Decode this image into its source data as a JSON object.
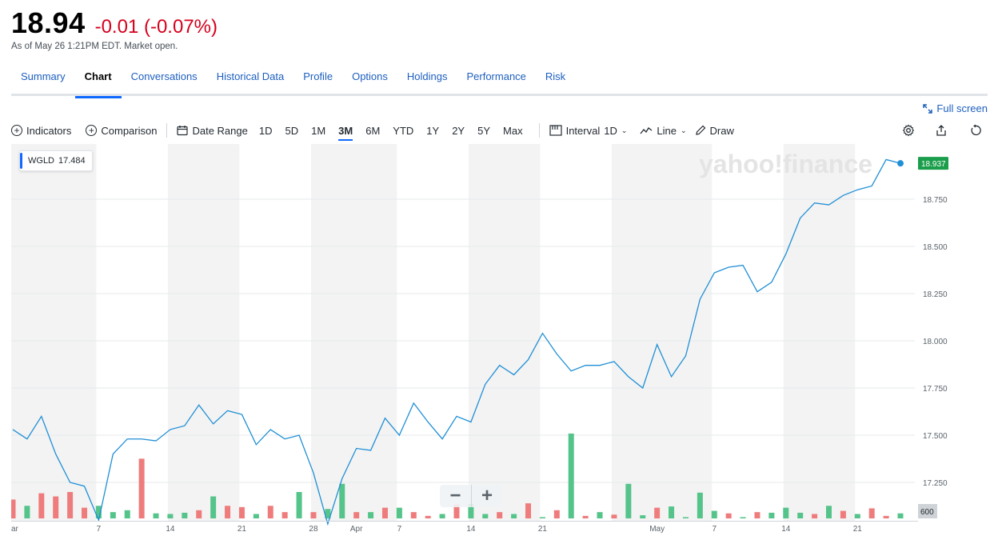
{
  "quote": {
    "price": "18.94",
    "change": "-0.01 (-0.07%)",
    "as_of": "As of May 26 1:21PM EDT. Market open."
  },
  "nav": {
    "tabs": [
      "Summary",
      "Chart",
      "Conversations",
      "Historical Data",
      "Profile",
      "Options",
      "Holdings",
      "Performance",
      "Risk"
    ],
    "active": "Chart"
  },
  "fullscreen_label": "Full screen",
  "toolbar": {
    "indicators": "Indicators",
    "comparison": "Comparison",
    "date_range": "Date Range",
    "ranges": [
      "1D",
      "5D",
      "1M",
      "3M",
      "6M",
      "YTD",
      "1Y",
      "2Y",
      "5Y",
      "Max"
    ],
    "active_range": "3M",
    "interval_label": "Interval",
    "interval_value": "1D",
    "chart_type": "Line",
    "draw": "Draw"
  },
  "legend": {
    "symbol": "WGLD",
    "value": "17.484"
  },
  "watermark": "yahoo!finance",
  "zoom": {
    "minus": "−",
    "plus": "+"
  },
  "colors": {
    "line": "#1f8fd6",
    "up_volume": "#55c48a",
    "down_volume": "#ef7c7c",
    "current_badge": "#1a9e4b",
    "change_red": "#d6001c",
    "accent": "#0f69ff"
  },
  "chart_data": {
    "type": "line",
    "series": [
      {
        "name": "WGLD",
        "y": [
          17.53,
          17.48,
          17.6,
          17.4,
          17.25,
          17.23,
          17.05,
          17.4,
          17.48,
          17.48,
          17.47,
          17.53,
          17.55,
          17.66,
          17.56,
          17.63,
          17.61,
          17.45,
          17.53,
          17.48,
          17.5,
          17.3,
          17.03,
          17.27,
          17.43,
          17.42,
          17.59,
          17.5,
          17.67,
          17.57,
          17.48,
          17.6,
          17.57,
          17.77,
          17.87,
          17.82,
          17.9,
          18.04,
          17.93,
          17.84,
          17.87,
          17.87,
          17.89,
          17.81,
          17.75,
          17.98,
          17.81,
          17.92,
          18.22,
          18.36,
          18.39,
          18.4,
          18.26,
          18.31,
          18.46,
          18.65,
          18.73,
          18.72,
          18.77,
          18.8,
          18.82,
          18.96,
          18.94
        ]
      }
    ],
    "volume": {
      "values": [
        3,
        2,
        4,
        3.5,
        4.2,
        1.7,
        2,
        1,
        1.3,
        9.5,
        0.8,
        0.7,
        0.9,
        1.3,
        3.5,
        2,
        1.8,
        0.7,
        2,
        1,
        4.2,
        1,
        1.5,
        5.5,
        1,
        1,
        1.7,
        1.7,
        1,
        0.4,
        0.7,
        2.2,
        2.3,
        0.7,
        1,
        0.7,
        2.4,
        0.2,
        1.3,
        13.5,
        0.4,
        1,
        0.6,
        5.5,
        0.5,
        1.7,
        1.9,
        0.2,
        4.1,
        1.2,
        0.8,
        0.2,
        1,
        0.9,
        1.7,
        0.9,
        0.7,
        2,
        1.2,
        0.7,
        1.6,
        0.4,
        0.8
      ],
      "direction": [
        "d",
        "u",
        "d",
        "d",
        "d",
        "d",
        "u",
        "u",
        "u",
        "d",
        "u",
        "u",
        "u",
        "d",
        "u",
        "d",
        "d",
        "u",
        "d",
        "d",
        "u",
        "d",
        "u",
        "u",
        "d",
        "u",
        "d",
        "u",
        "d",
        "d",
        "u",
        "d",
        "u",
        "u",
        "d",
        "u",
        "d",
        "u",
        "d",
        "u",
        "d",
        "u",
        "d",
        "u",
        "u",
        "d",
        "u",
        "u",
        "u",
        "u",
        "d",
        "u",
        "d",
        "u",
        "u",
        "u",
        "d",
        "u",
        "d",
        "u",
        "d",
        "d",
        "u"
      ],
      "label": "600"
    },
    "current": {
      "value": 18.94,
      "label": "18.937"
    },
    "y_ticks": [
      17.25,
      17.5,
      17.75,
      18.0,
      18.25,
      18.5,
      18.75
    ],
    "y_tick_labels": [
      "17.250",
      "17.500",
      "17.750",
      "18.000",
      "18.250",
      "18.500",
      "18.750"
    ],
    "ylim": [
      17.0,
      19.0
    ],
    "x_ticks": [
      {
        "i": 0,
        "label": "ar"
      },
      {
        "i": 6,
        "label": "7"
      },
      {
        "i": 11,
        "label": "14"
      },
      {
        "i": 16,
        "label": "21"
      },
      {
        "i": 21,
        "label": "28"
      },
      {
        "i": 24,
        "label": "Apr"
      },
      {
        "i": 27,
        "label": "7"
      },
      {
        "i": 32,
        "label": "14"
      },
      {
        "i": 37,
        "label": "21"
      },
      {
        "i": 45,
        "label": "May"
      },
      {
        "i": 49,
        "label": "7"
      },
      {
        "i": 54,
        "label": "14"
      },
      {
        "i": 59,
        "label": "21"
      }
    ],
    "grid": true,
    "legend_position": "top-left"
  }
}
